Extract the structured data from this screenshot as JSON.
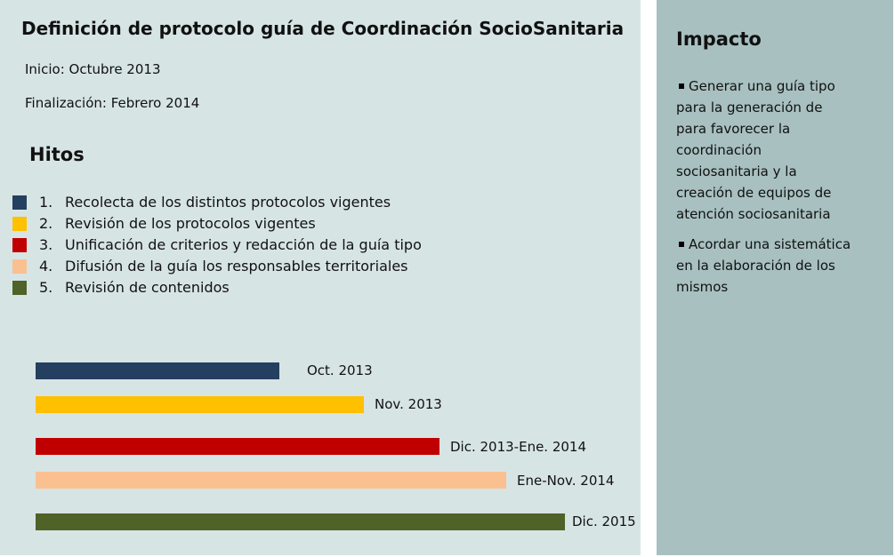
{
  "header": {
    "title": "Definición de protocolo guía de Coordinación SocioSanitaria",
    "start": "Inicio: Octubre 2013",
    "end": "Finalización:  Febrero 2014"
  },
  "milestones": {
    "title": "Hitos",
    "items": [
      {
        "number": "1.",
        "text": "Recolecta de los distintos protocolos vigentes"
      },
      {
        "number": "2.",
        "text": "Revisión de los protocolos vigentes"
      },
      {
        "number": "3.",
        "text": "Unificación de criterios y redacción de la guía tipo"
      },
      {
        "number": "4.",
        "text": "Difusión de la guía  los responsables territoriales"
      },
      {
        "number": "5.",
        "text": "Revisión de contenidos"
      }
    ]
  },
  "timeline": {
    "labels": [
      "Oct.  2013",
      "Nov. 2013",
      "Dic. 2013-Ene. 2014",
      "Ene-Nov. 2014",
      "Dic. 2015"
    ]
  },
  "impact": {
    "title": "Impacto",
    "bullets": [
      [
        "Generar una guía tipo",
        "para la generación de",
        "para favorecer la",
        "coordinación",
        "sociosanitaria y la",
        "creación de equipos de",
        "atención sociosanitaria"
      ],
      [
        "Acordar una sistemática",
        "en la elaboración de los",
        "mismos"
      ]
    ]
  }
}
